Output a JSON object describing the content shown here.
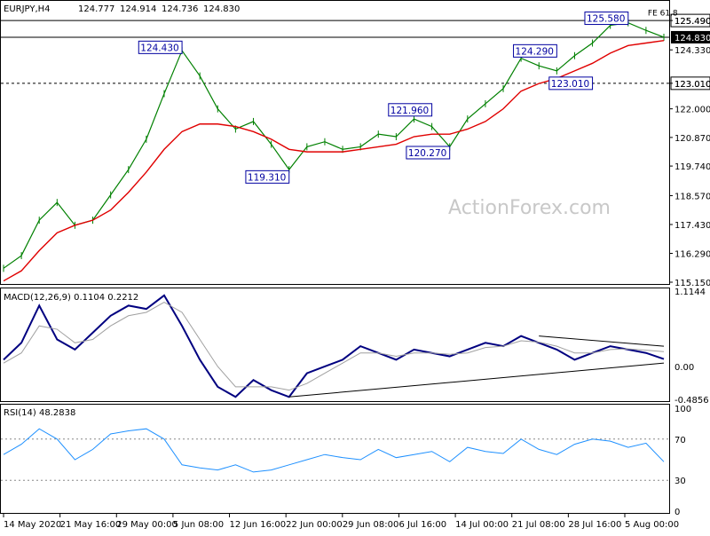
{
  "chart_data": [
    {
      "type": "candlestick",
      "title": "EURJPY,H4",
      "ohlc": {
        "open": "124.777",
        "high": "124.914",
        "low": "124.736",
        "close": "124.830"
      },
      "ylim": [
        115.15,
        125.95
      ],
      "yticks": [
        "125.490",
        "124.330",
        "123.010",
        "122.000",
        "120.870",
        "119.740",
        "118.570",
        "117.430",
        "116.290",
        "115.150"
      ],
      "xticks": [
        "14 May 2020",
        "21 May 16:00",
        "29 May 00:00",
        "5 Jun 08:00",
        "12 Jun 16:00",
        "22 Jun 00:00",
        "29 Jun 08:00",
        "6 Jul 16:00",
        "14 Jul 00:00",
        "21 Jul 08:00",
        "28 Jul 16:00",
        "5 Aug 00:00"
      ],
      "x": [
        "2020-05-14",
        "2020-05-16",
        "2020-05-18",
        "2020-05-20",
        "2020-05-22",
        "2020-05-25",
        "2020-05-27",
        "2020-05-29",
        "2020-06-01",
        "2020-06-03",
        "2020-06-05",
        "2020-06-08",
        "2020-06-10",
        "2020-06-12",
        "2020-06-15",
        "2020-06-17",
        "2020-06-19",
        "2020-06-22",
        "2020-06-24",
        "2020-06-26",
        "2020-06-29",
        "2020-07-01",
        "2020-07-03",
        "2020-07-06",
        "2020-07-08",
        "2020-07-10",
        "2020-07-13",
        "2020-07-15",
        "2020-07-17",
        "2020-07-20",
        "2020-07-22",
        "2020-07-24",
        "2020-07-27",
        "2020-07-29",
        "2020-07-31",
        "2020-08-03",
        "2020-08-05",
        "2020-08-06"
      ],
      "close": [
        115.7,
        116.2,
        117.6,
        118.3,
        117.4,
        117.6,
        118.6,
        119.6,
        120.8,
        122.6,
        124.3,
        123.3,
        122.0,
        121.2,
        121.5,
        120.6,
        119.6,
        120.5,
        120.7,
        120.4,
        120.5,
        121.0,
        120.9,
        121.6,
        121.3,
        120.5,
        121.6,
        122.2,
        122.8,
        124.0,
        123.7,
        123.5,
        124.1,
        124.6,
        125.3,
        125.4,
        125.1,
        124.83
      ],
      "ma_label": "",
      "ma": [
        115.2,
        115.6,
        116.4,
        117.1,
        117.4,
        117.6,
        118.0,
        118.7,
        119.5,
        120.4,
        121.1,
        121.4,
        121.4,
        121.3,
        121.1,
        120.8,
        120.4,
        120.3,
        120.3,
        120.3,
        120.4,
        120.5,
        120.6,
        120.9,
        121.0,
        121.0,
        121.2,
        121.5,
        122.0,
        122.7,
        123.0,
        123.2,
        123.5,
        123.8,
        124.2,
        124.5,
        124.6,
        124.7
      ],
      "levels": [
        {
          "value": 125.49,
          "label": "125.490",
          "style": "solid"
        },
        {
          "value": 124.83,
          "label": "124.830",
          "style": "solid",
          "highlight": true
        },
        {
          "value": 123.01,
          "label": "123.010",
          "style": "dashed"
        }
      ],
      "annotations": [
        {
          "text": "124.430",
          "x": "2020-06-05",
          "value": 124.43
        },
        {
          "text": "119.310",
          "x": "2020-06-19",
          "value": 119.31
        },
        {
          "text": "121.960",
          "x": "2020-07-08",
          "value": 121.96
        },
        {
          "text": "120.270",
          "x": "2020-07-10",
          "value": 120.27
        },
        {
          "text": "124.290",
          "x": "2020-07-24",
          "value": 124.29
        },
        {
          "text": "123.010",
          "x": "2020-07-29",
          "value": 123.01
        },
        {
          "text": "125.580",
          "x": "2020-08-03",
          "value": 125.58
        },
        {
          "text": "FE 61.8",
          "x": "2020-08-05",
          "value": 125.58
        }
      ]
    },
    {
      "type": "line",
      "title": "MACD(12,26,9) 0.1104 0.2212",
      "ylim": [
        -0.4856,
        1.1144
      ],
      "yticks": [
        "1.1144",
        "0.00",
        "-0.4856"
      ],
      "series": [
        {
          "values": [
            0.1,
            0.35,
            0.9,
            0.4,
            0.25,
            0.5,
            0.75,
            0.9,
            0.85,
            1.05,
            0.6,
            0.1,
            -0.3,
            -0.45,
            -0.2,
            -0.35,
            -0.45,
            -0.1,
            0.0,
            0.1,
            0.3,
            0.2,
            0.1,
            0.25,
            0.2,
            0.15,
            0.25,
            0.35,
            0.3,
            0.45,
            0.35,
            0.25,
            0.1,
            0.2,
            0.3,
            0.25,
            0.2,
            0.11
          ]
        },
        {
          "values": [
            0.05,
            0.2,
            0.6,
            0.55,
            0.35,
            0.4,
            0.6,
            0.75,
            0.8,
            0.95,
            0.8,
            0.4,
            0.0,
            -0.3,
            -0.3,
            -0.3,
            -0.35,
            -0.25,
            -0.1,
            0.05,
            0.2,
            0.2,
            0.15,
            0.2,
            0.2,
            0.18,
            0.2,
            0.28,
            0.3,
            0.38,
            0.36,
            0.3,
            0.2,
            0.2,
            0.25,
            0.26,
            0.24,
            0.22
          ]
        }
      ],
      "trendlines": [
        {
          "from": {
            "x": "2020-06-19",
            "value": -0.45
          },
          "to": {
            "x": "2020-08-06",
            "value": 0.05
          }
        },
        {
          "from": {
            "x": "2020-07-22",
            "value": 0.45
          },
          "to": {
            "x": "2020-08-06",
            "value": 0.3
          }
        }
      ]
    },
    {
      "type": "line",
      "title": "RSI(14) 48.2838",
      "ylim": [
        0,
        100
      ],
      "yticks": [
        "100",
        "70",
        "30",
        "0"
      ],
      "levels": [
        70,
        30
      ],
      "series": [
        {
          "values": [
            55,
            65,
            80,
            70,
            50,
            60,
            75,
            78,
            80,
            70,
            45,
            42,
            40,
            45,
            38,
            40,
            45,
            50,
            55,
            52,
            50,
            60,
            52,
            55,
            58,
            48,
            62,
            58,
            56,
            70,
            60,
            55,
            65,
            70,
            68,
            62,
            66,
            48
          ]
        }
      ]
    }
  ],
  "watermark": "ActionForex.com",
  "colors": {
    "price": "#008000",
    "ma": "#e00000",
    "macd": "#000080",
    "signal": "#a0a0a0",
    "rsi": "#1e90ff",
    "label": "#0000a0",
    "highlight_bg": "#000000"
  }
}
